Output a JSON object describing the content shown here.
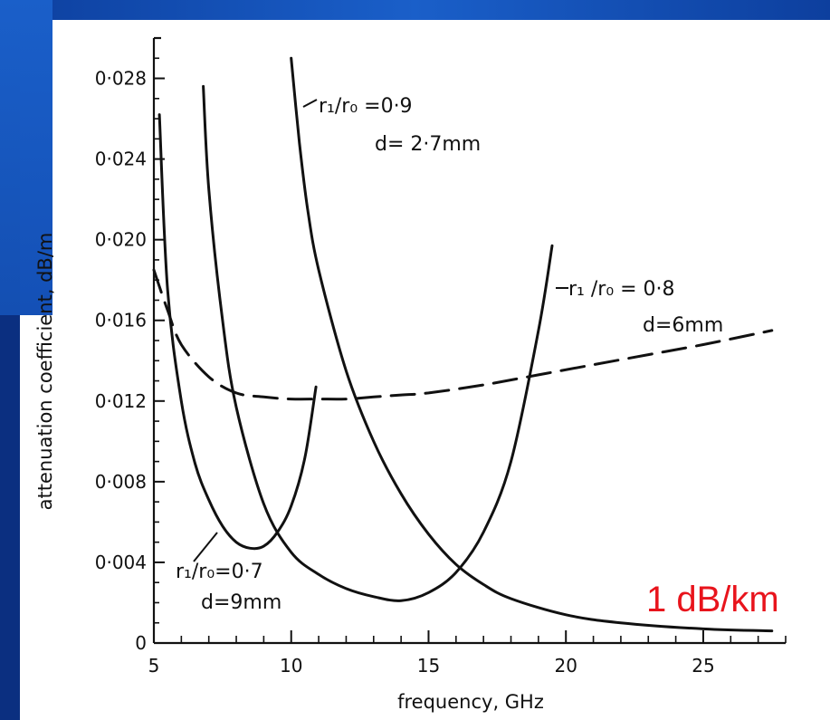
{
  "chart_data": {
    "type": "line",
    "xlabel": "frequency, GHz",
    "ylabel": "attenuation coefficient, dB/m",
    "xlim": [
      5,
      28
    ],
    "ylim": [
      0,
      0.03
    ],
    "xticks": [
      5,
      10,
      15,
      20,
      25
    ],
    "xtick_labels": [
      "5",
      "10",
      "15",
      "20",
      "25"
    ],
    "yticks": [
      0,
      0.004,
      0.008,
      0.012,
      0.016,
      0.02,
      0.024,
      0.028
    ],
    "ytick_labels": [
      "0",
      "0·004",
      "0·008",
      "0·012",
      "0·016",
      "0·020",
      "0·024",
      "0·028"
    ],
    "grid": false,
    "series": [
      {
        "name": "r1/r0=0.7, d=9mm",
        "style": "solid",
        "x": [
          5.2,
          5.5,
          6.0,
          6.5,
          7.0,
          7.5,
          8.0,
          8.5,
          9.0,
          9.5,
          10.0,
          10.5,
          10.9
        ],
        "y": [
          0.0262,
          0.0175,
          0.012,
          0.0089,
          0.0071,
          0.0058,
          0.005,
          0.0047,
          0.0048,
          0.0055,
          0.0068,
          0.0092,
          0.0127
        ]
      },
      {
        "name": "r1/r0=0.8, d=6mm",
        "style": "solid",
        "x": [
          6.8,
          7.0,
          7.5,
          8.0,
          9.0,
          10.0,
          11.0,
          12.0,
          13.0,
          14.0,
          15.0,
          16.0,
          17.0,
          18.0,
          19.0,
          19.5
        ],
        "y": [
          0.0276,
          0.0225,
          0.016,
          0.0117,
          0.0069,
          0.0045,
          0.0034,
          0.0027,
          0.0023,
          0.0021,
          0.0025,
          0.0035,
          0.0055,
          0.009,
          0.0155,
          0.0197
        ]
      },
      {
        "name": "r1/r0=0.9, d=2.7mm",
        "style": "solid",
        "x": [
          10.0,
          10.3,
          10.6,
          11.0,
          12.0,
          13.0,
          14.0,
          15.0,
          16.0,
          17.0,
          18.0,
          20.0,
          22.0,
          25.0,
          27.5
        ],
        "y": [
          0.029,
          0.0248,
          0.0215,
          0.0185,
          0.0135,
          0.01,
          0.0074,
          0.0054,
          0.0039,
          0.0029,
          0.0022,
          0.0014,
          0.001,
          0.0007,
          0.0006
        ]
      },
      {
        "name": "",
        "style": "dashed",
        "x": [
          5.0,
          5.5,
          6.0,
          7.0,
          8.0,
          9.0,
          10.0,
          11.0,
          12.0,
          13.0,
          14.0,
          15.0,
          17.0,
          19.0,
          21.0,
          23.0,
          25.0,
          27.5
        ],
        "y": [
          0.0185,
          0.0165,
          0.0148,
          0.0132,
          0.0124,
          0.0122,
          0.0121,
          0.0121,
          0.0121,
          0.0122,
          0.0123,
          0.0124,
          0.0128,
          0.0133,
          0.0138,
          0.0143,
          0.0148,
          0.0155
        ]
      }
    ],
    "annotations": [
      {
        "id": "a09",
        "lines": [
          "r₁/r₀ =0·9",
          "d= 2·7mm"
        ]
      },
      {
        "id": "a08",
        "lines": [
          "r₁ /r₀ = 0·8",
          "d=6mm"
        ]
      },
      {
        "id": "a07",
        "lines": [
          "r₁/r₀=0·7",
          "d=9mm"
        ]
      },
      {
        "id": "red",
        "lines": [
          "1 dB/km"
        ],
        "color": "#e8141c"
      }
    ]
  }
}
